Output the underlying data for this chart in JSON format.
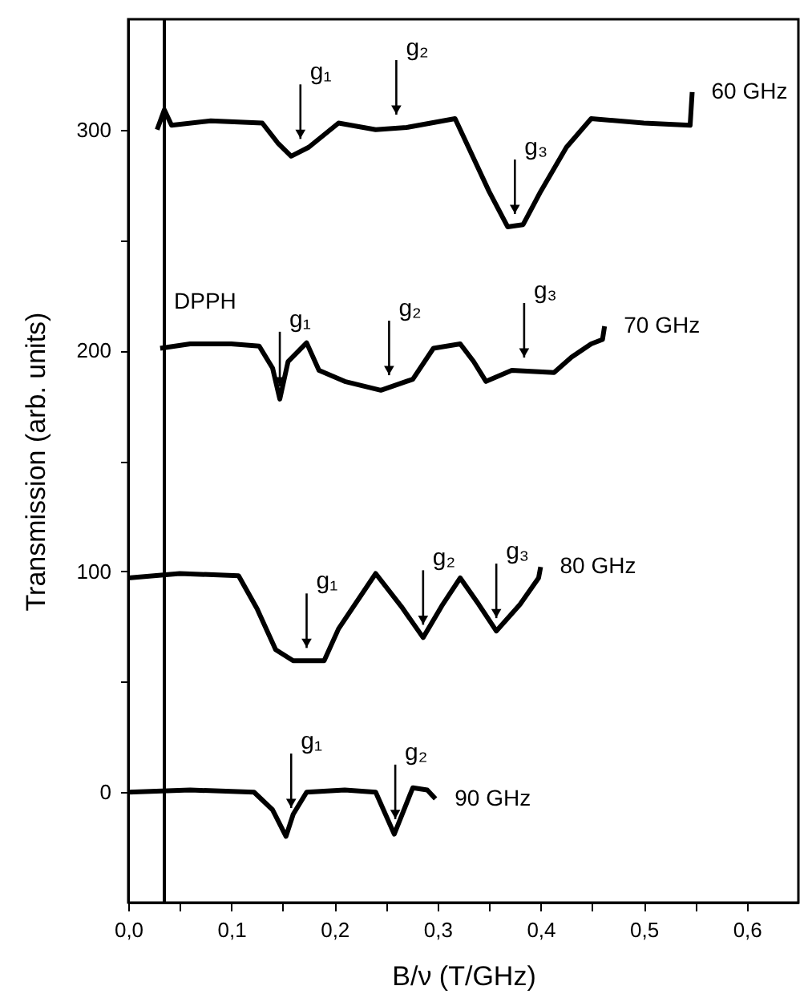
{
  "chart_data": {
    "type": "line",
    "xlabel": "B/ν (T/GHz)",
    "ylabel": "Transmission (arb. units)",
    "xlim": [
      0,
      0.65
    ],
    "ylim": [
      -50,
      350
    ],
    "xticks": [
      {
        "value": 0,
        "label": "0,0"
      },
      {
        "value": 0.05,
        "label": null
      },
      {
        "value": 0.1,
        "label": "0,1"
      },
      {
        "value": 0.15,
        "label": null
      },
      {
        "value": 0.2,
        "label": "0,2"
      },
      {
        "value": 0.25,
        "label": null
      },
      {
        "value": 0.3,
        "label": "0,3"
      },
      {
        "value": 0.35,
        "label": null
      },
      {
        "value": 0.4,
        "label": "0,4"
      },
      {
        "value": 0.45,
        "label": null
      },
      {
        "value": 0.5,
        "label": "0,5"
      },
      {
        "value": 0.55,
        "label": null
      },
      {
        "value": 0.6,
        "label": "0,6"
      }
    ],
    "yticks": [
      0,
      {
        "value": 50,
        "label": null
      },
      100,
      {
        "value": 150,
        "label": null
      },
      200,
      {
        "value": 250,
        "label": null
      },
      300
    ],
    "grid": false,
    "line_style": "solid",
    "marker": "none",
    "series": [
      {
        "name": "60 GHz",
        "color": "#000000",
        "x": [
          0.028,
          0.035,
          0.042,
          0.08,
          0.13,
          0.145,
          0.158,
          0.175,
          0.204,
          0.24,
          0.27,
          0.317,
          0.33,
          0.35,
          0.368,
          0.383,
          0.4,
          0.425,
          0.449,
          0.5,
          0.545,
          0.547
        ],
        "values": [
          300,
          309,
          302,
          304,
          303,
          294,
          288,
          292,
          303,
          300,
          301,
          305,
          292,
          272,
          256,
          257,
          272,
          292,
          305,
          303,
          302,
          317
        ]
      },
      {
        "name": "70 GHz",
        "color": "#000000",
        "x": [
          0.031,
          0.06,
          0.1,
          0.127,
          0.14,
          0.147,
          0.155,
          0.173,
          0.185,
          0.21,
          0.245,
          0.276,
          0.296,
          0.322,
          0.335,
          0.347,
          0.372,
          0.413,
          0.43,
          0.449,
          0.46,
          0.462
        ],
        "values": [
          201,
          203,
          203,
          202,
          192,
          178,
          195,
          203.5,
          191,
          186,
          182,
          187,
          201,
          203,
          195,
          186,
          191,
          190,
          197,
          203,
          205,
          211
        ]
      },
      {
        "name": "80 GHz",
        "color": "#000000",
        "x": [
          0.0,
          0.05,
          0.107,
          0.125,
          0.143,
          0.16,
          0.19,
          0.204,
          0.24,
          0.265,
          0.286,
          0.305,
          0.322,
          0.34,
          0.357,
          0.38,
          0.398,
          0.4
        ],
        "values": [
          97,
          99,
          98,
          83,
          64.5,
          59.5,
          59.5,
          74,
          99,
          84,
          70,
          85,
          97,
          85,
          73,
          85,
          97,
          102
        ]
      },
      {
        "name": "90 GHz",
        "color": "#000000",
        "x": [
          0.0,
          0.06,
          0.122,
          0.14,
          0.153,
          0.16,
          0.173,
          0.21,
          0.24,
          0.258,
          0.276,
          0.29,
          0.298
        ],
        "values": [
          0,
          1,
          0,
          -8,
          -20,
          -10,
          0,
          1,
          0,
          -19,
          2,
          1,
          -3
        ]
      }
    ],
    "ref_lines": [
      {
        "axis": "x",
        "value": 0.035,
        "label": "DPPH",
        "color": "#000000"
      }
    ],
    "annotations": [
      {
        "text": "g₁",
        "x": 0.167,
        "y": 290
      },
      {
        "text": "g₂",
        "x": 0.26,
        "y": 301
      },
      {
        "text": "g₃",
        "x": 0.375,
        "y": 256
      },
      {
        "text": "g₁",
        "x": 0.147,
        "y": 178
      },
      {
        "text": "g₂",
        "x": 0.253,
        "y": 183
      },
      {
        "text": "g₃",
        "x": 0.384,
        "y": 191
      },
      {
        "text": "g₁",
        "x": 0.173,
        "y": 59.5
      },
      {
        "text": "g₂",
        "x": 0.286,
        "y": 70
      },
      {
        "text": "g₃",
        "x": 0.357,
        "y": 73
      },
      {
        "text": "g₁",
        "x": 0.158,
        "y": -13
      },
      {
        "text": "g₂",
        "x": 0.259,
        "y": -18
      }
    ]
  }
}
